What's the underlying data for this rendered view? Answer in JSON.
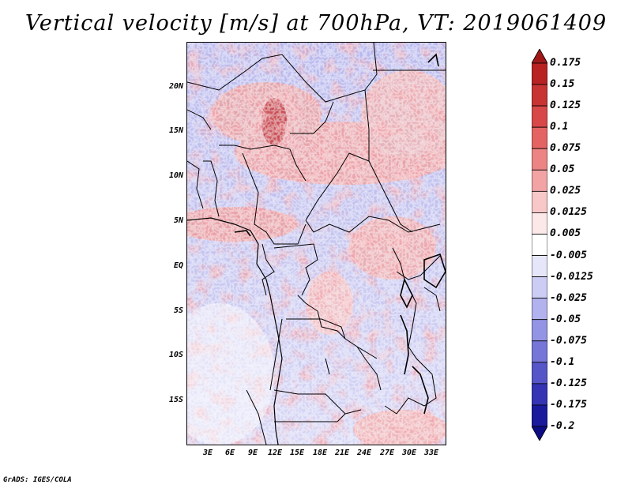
{
  "title": "Vertical velocity [m/s] at 700hPa, VT: 2019061409",
  "credit": "GrADS: IGES/COLA",
  "map": {
    "lat_labels": [
      "20N",
      "15N",
      "10N",
      "5N",
      "EQ",
      "5S",
      "10S",
      "15S"
    ],
    "lon_labels": [
      "3E",
      "6E",
      "9E",
      "12E",
      "15E",
      "18E",
      "21E",
      "24E",
      "27E",
      "30E",
      "33E"
    ]
  },
  "colorbar": {
    "levels": [
      "0.175",
      "0.15",
      "0.125",
      "0.1",
      "0.075",
      "0.05",
      "0.025",
      "0.0125",
      "0.005",
      "-0.005",
      "-0.0125",
      "-0.025",
      "-0.05",
      "-0.075",
      "-0.1",
      "-0.125",
      "-0.175",
      "-0.2"
    ],
    "colors": [
      "#a01818",
      "#b82222",
      "#c83434",
      "#d84848",
      "#e46464",
      "#ec8484",
      "#f2a4a4",
      "#f8c8c8",
      "#fce8e8",
      "#ffffff",
      "#e6e6fa",
      "#ccccf4",
      "#b2b2ee",
      "#9494e4",
      "#7676d8",
      "#5656c8",
      "#3434b4",
      "#1a1a9c",
      "#0c0c84"
    ]
  }
}
